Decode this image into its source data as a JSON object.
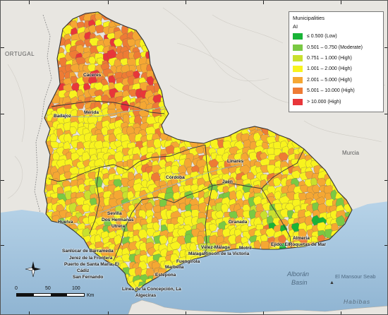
{
  "legend": {
    "title": "Municipalities",
    "subtitle": "AI",
    "items": [
      {
        "label": "≤ 0.500 (Low)",
        "color": "#19b437"
      },
      {
        "label": "0.501 – 0.750 (Moderate)",
        "color": "#7ac943"
      },
      {
        "label": "0.751 – 1.000 (High)",
        "color": "#c9e02e"
      },
      {
        "label": "1.001 – 2.000 (High)",
        "color": "#f8f31e"
      },
      {
        "label": "2.001 – 5.000 (High)",
        "color": "#f5a733"
      },
      {
        "label": "5.001 – 10.000 (High)",
        "color": "#ee7b35"
      },
      {
        "label": "> 10.000 (High)",
        "color": "#e8363a"
      }
    ]
  },
  "cities": {
    "caceres": "Cáceres",
    "badajoz": "Badajoz",
    "merida": "Mérida",
    "cordoba": "Córdoba",
    "linares": "Linares",
    "jaen": "Jaén",
    "sevilla": "Sevilla",
    "dos_hermanas": "Dos Hermanas",
    "utrera": "Utrera",
    "huelva": "Huelva",
    "granada": "Granada",
    "almeria": "Almería",
    "ejido": "Ejido, ElRoquetas de Mar",
    "velez": "Vélez-Málaga",
    "motril": "Motril",
    "malaga": "MálagaRincón de la Victoria",
    "fuengirola": "Fuengirola",
    "marbella": "Marbella",
    "estepona": "Estepona",
    "sanlucar": "Sanlúcar de Barrameda",
    "jerez": "Jerez de la Frontera",
    "puerto": "Puerto de Santa María, El",
    "cadiz": "Cádiz",
    "san_fernando": "San Fernando",
    "linea": "Línea de la Concepción, La",
    "algeciras": "Algeciras"
  },
  "geography": {
    "portugal": "ORTUGAL",
    "murcia": "Murcia",
    "alboran": "Alborán",
    "basin": "Basin",
    "el_mansour": "El Mansour Seab",
    "habibas": "Habibas"
  },
  "scalebar": {
    "labels": [
      "0",
      "50",
      "100"
    ],
    "unit": "Km"
  },
  "colors": {
    "sea": "#a9c8e0",
    "land": "#e8e6e1",
    "border": "#333333"
  }
}
